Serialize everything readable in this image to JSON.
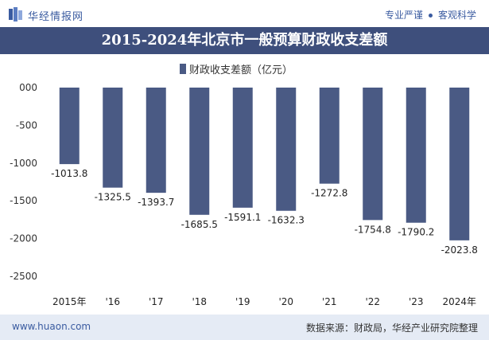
{
  "header": {
    "logo_text": "华经情报网",
    "tagline_items": [
      "专业严谨",
      "客观科学"
    ]
  },
  "colors": {
    "title_bar": "#3e4f7c",
    "bar": "#4a5a84",
    "brand": "#3a5ba0",
    "footer_bg": "#e5ebf5"
  },
  "footer": {
    "website": "www.huaon.com",
    "source": "数据来源：财政局，华经产业研究院整理"
  },
  "chart_data": {
    "type": "bar",
    "title": "2015-2024年北京市一般预算财政收支差额",
    "categories": [
      "2015年",
      "'16",
      "'17",
      "'18",
      "'19",
      "'20",
      "'21",
      "'22",
      "'23",
      "2024年"
    ],
    "series": [
      {
        "name": "财政收支差额（亿元）",
        "values": [
          -1013.8,
          -1325.5,
          -1393.7,
          -1685.5,
          -1591.1,
          -1632.3,
          -1272.8,
          -1754.8,
          -1790.2,
          -2023.8
        ],
        "labels": [
          "-1013.8",
          "-1325.5",
          "-1393.7",
          "-1685.5",
          "-1591.1",
          "-1632.3",
          "-1272.8",
          "-1754.8",
          "-1790.2",
          "-2023.8"
        ]
      }
    ],
    "ylim": [
      -2500,
      0
    ],
    "yticks": [
      0,
      -500,
      -1000,
      -1500,
      -2000,
      -2500
    ],
    "ytick_labels": [
      "000",
      "-500",
      "-1000",
      "-1500",
      "-2000",
      "-2500"
    ],
    "grid": false,
    "legend_position": "top-center",
    "xlabel": "",
    "ylabel": ""
  }
}
